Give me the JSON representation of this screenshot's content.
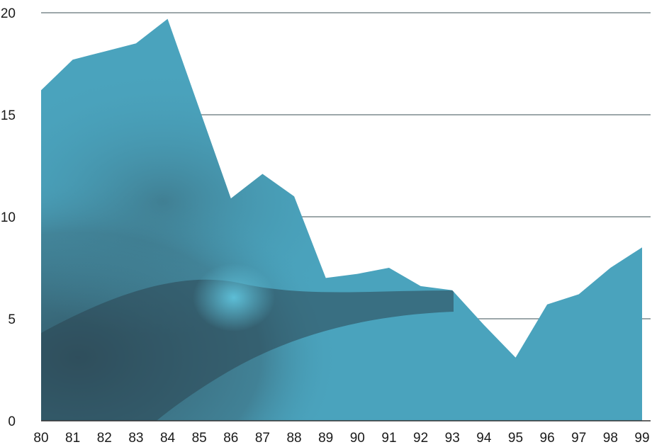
{
  "chart_data": {
    "type": "area",
    "title": "",
    "xlabel": "",
    "ylabel": "",
    "x": [
      "80",
      "81",
      "82",
      "83",
      "84",
      "85",
      "86",
      "87",
      "88",
      "89",
      "90",
      "91",
      "92",
      "93",
      "94",
      "95",
      "96",
      "97",
      "98",
      "99"
    ],
    "series": [
      {
        "values": [
          16.2,
          17.7,
          18.1,
          18.5,
          19.7,
          15.3,
          10.9,
          12.1,
          11.0,
          7.0,
          7.2,
          7.5,
          6.6,
          6.4,
          4.7,
          3.1,
          5.7,
          6.2,
          7.5,
          8.5
        ]
      }
    ],
    "ylim": [
      0,
      20
    ],
    "yticks": [
      "0",
      "5",
      "10",
      "15",
      "20"
    ],
    "grid": true,
    "fill_color": "#4aa3bd",
    "shadow_color": "#2f4d5a"
  }
}
